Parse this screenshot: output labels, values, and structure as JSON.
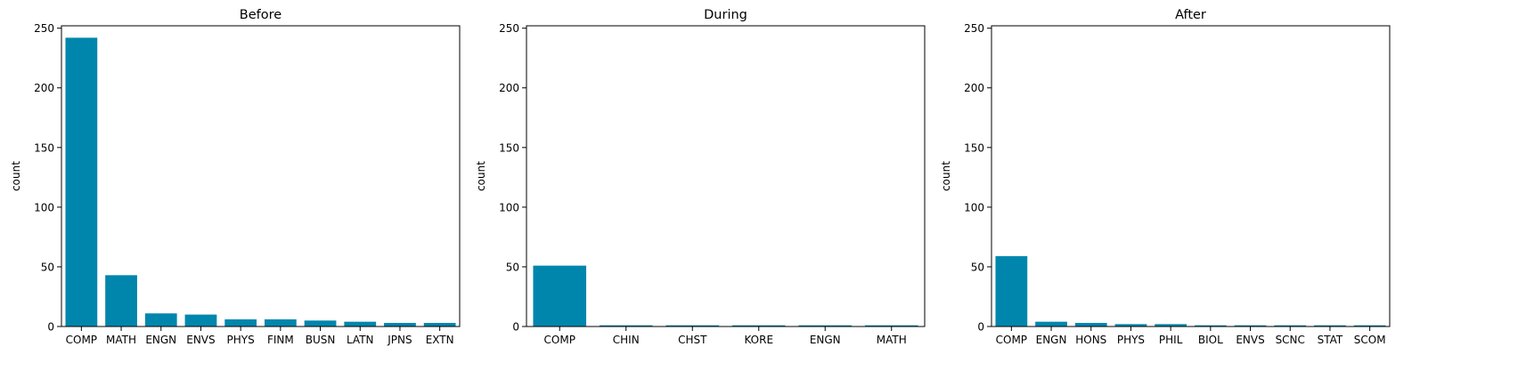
{
  "colors": {
    "bar": "#0086AD",
    "axis": "#000000",
    "background": "#ffffff"
  },
  "chart_data": [
    {
      "type": "bar",
      "title": "Before",
      "xlabel": "",
      "ylabel": "count",
      "ylim": [
        0,
        252
      ],
      "yticks": [
        0,
        50,
        100,
        150,
        200,
        250
      ],
      "grid": false,
      "categories": [
        "COMP",
        "MATH",
        "ENGN",
        "ENVS",
        "PHYS",
        "FINM",
        "BUSN",
        "LATN",
        "JPNS",
        "EXTN"
      ],
      "values": [
        242,
        43,
        11,
        10,
        6,
        6,
        5,
        4,
        3,
        3
      ]
    },
    {
      "type": "bar",
      "title": "During",
      "xlabel": "",
      "ylabel": "count",
      "ylim": [
        0,
        252
      ],
      "yticks": [
        0,
        50,
        100,
        150,
        200,
        250
      ],
      "grid": false,
      "categories": [
        "COMP",
        "CHIN",
        "CHST",
        "KORE",
        "ENGN",
        "MATH"
      ],
      "values": [
        51,
        1,
        1,
        1,
        1,
        1
      ]
    },
    {
      "type": "bar",
      "title": "After",
      "xlabel": "",
      "ylabel": "count",
      "ylim": [
        0,
        252
      ],
      "yticks": [
        0,
        50,
        100,
        150,
        200,
        250
      ],
      "grid": false,
      "categories": [
        "COMP",
        "ENGN",
        "HONS",
        "PHYS",
        "PHIL",
        "BIOL",
        "ENVS",
        "SCNC",
        "STAT",
        "SCOM"
      ],
      "values": [
        59,
        4,
        3,
        2,
        2,
        1,
        1,
        1,
        1,
        1
      ]
    }
  ]
}
